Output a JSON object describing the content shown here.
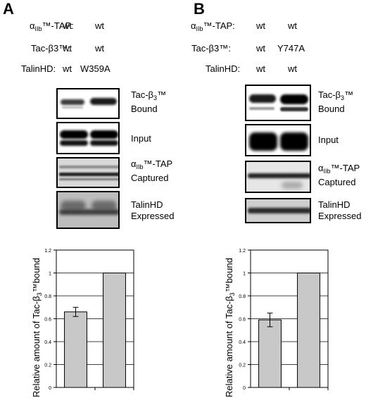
{
  "panelA": {
    "letter": "A",
    "rows": [
      {
        "label": "α",
        "label_sub": "IIb",
        "label_rest": "™-TAP:",
        "lane1": "wt",
        "lane2": "wt"
      },
      {
        "label": "Tac-β3™:",
        "label_sub": "",
        "label_rest": "",
        "lane1": "wt",
        "lane2": "wt"
      },
      {
        "label": "TalinHD:",
        "label_sub": "",
        "label_rest": "",
        "lane1": "wt",
        "lane2": "W359A"
      }
    ],
    "blots": [
      {
        "line1": "Tac-β",
        "line1_sub": "3",
        "line1_rest": "™",
        "line2": "Bound"
      },
      {
        "line1": "Input",
        "line1_sub": "",
        "line1_rest": "",
        "line2": ""
      },
      {
        "line1": "α",
        "line1_sub": "IIb",
        "line1_rest": "™-TAP",
        "line2": "Captured"
      },
      {
        "line1": "TalinHD",
        "line1_sub": "",
        "line1_rest": "",
        "line2": "Expressed"
      }
    ],
    "chart_data": {
      "type": "bar",
      "categories": [
        "",
        ""
      ],
      "values": [
        0.66,
        1.0
      ],
      "errors": [
        0.04,
        0
      ],
      "ylabel_main": "Relative amount of Tac-β",
      "ylabel_sub": "3",
      "ylabel_rest": "™bound",
      "ylim": [
        0,
        1.2
      ],
      "yticks": [
        "0",
        "0.2",
        "0.4",
        "0.6",
        "0.8",
        "1",
        "1.2"
      ],
      "grid": true,
      "bar_color": "#c8c8c8"
    }
  },
  "panelB": {
    "letter": "B",
    "rows": [
      {
        "label": "α",
        "label_sub": "IIb",
        "label_rest": "™-TAP:",
        "lane1": "wt",
        "lane2": "wt"
      },
      {
        "label": "Tac-β3™:",
        "label_sub": "",
        "label_rest": "",
        "lane1": "wt",
        "lane2": "Y747A"
      },
      {
        "label": "TalinHD:",
        "label_sub": "",
        "label_rest": "",
        "lane1": "wt",
        "lane2": "wt"
      }
    ],
    "blots": [
      {
        "line1": "Tac-β",
        "line1_sub": "3",
        "line1_rest": "™",
        "line2": "Bound"
      },
      {
        "line1": "Input",
        "line1_sub": "",
        "line1_rest": "",
        "line2": ""
      },
      {
        "line1": "α",
        "line1_sub": "IIb",
        "line1_rest": "™-TAP",
        "line2": "Captured"
      },
      {
        "line1": "TalinHD",
        "line1_sub": "",
        "line1_rest": "",
        "line2": "Expressed"
      }
    ],
    "chart_data": {
      "type": "bar",
      "categories": [
        "",
        ""
      ],
      "values": [
        0.59,
        1.0
      ],
      "errors": [
        0.06,
        0
      ],
      "ylabel_main": "Relative amount of Tac-β",
      "ylabel_sub": "3",
      "ylabel_rest": "™bound",
      "ylim": [
        0,
        1.2
      ],
      "yticks": [
        "0",
        "0.2",
        "0.4",
        "0.6",
        "0.8",
        "1",
        "1.2"
      ],
      "grid": true,
      "bar_color": "#c8c8c8"
    }
  }
}
